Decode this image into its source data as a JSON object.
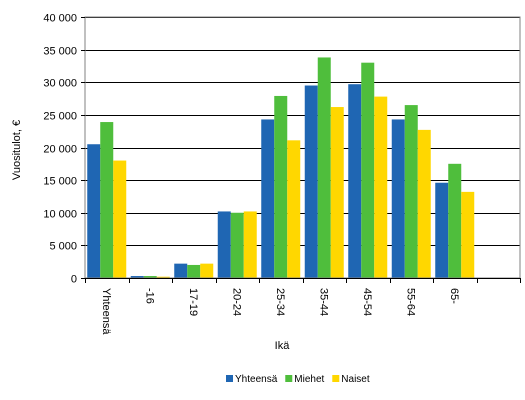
{
  "chart_data": {
    "type": "bar",
    "title": "",
    "xlabel": "Ikä",
    "ylabel": "Vuositulot, €",
    "ylim": [
      0,
      40000
    ],
    "yticks": [
      0,
      5000,
      10000,
      15000,
      20000,
      25000,
      30000,
      35000,
      40000
    ],
    "ytick_labels": [
      "0",
      "5 000",
      "10 000",
      "15 000",
      "20 000",
      "25 000",
      "30 000",
      "35 000",
      "40 000"
    ],
    "grid": true,
    "legend_position": "bottom",
    "categories": [
      "Yhteensä",
      "-16",
      "17-19",
      "20-24",
      "25-34",
      "35-44",
      "45-54",
      "55-64",
      "65-"
    ],
    "series": [
      {
        "name": "Yhteensä",
        "color": "#1f66b3",
        "values": [
          20500,
          300,
          2200,
          10200,
          24300,
          29500,
          29700,
          24300,
          14600
        ]
      },
      {
        "name": "Miehet",
        "color": "#4fbe3c",
        "values": [
          23900,
          300,
          2000,
          10000,
          27900,
          33800,
          33000,
          26500,
          17500
        ]
      },
      {
        "name": "Naiset",
        "color": "#ffd700",
        "values": [
          18000,
          200,
          2200,
          10200,
          21100,
          26200,
          27800,
          22700,
          13200
        ]
      }
    ]
  }
}
